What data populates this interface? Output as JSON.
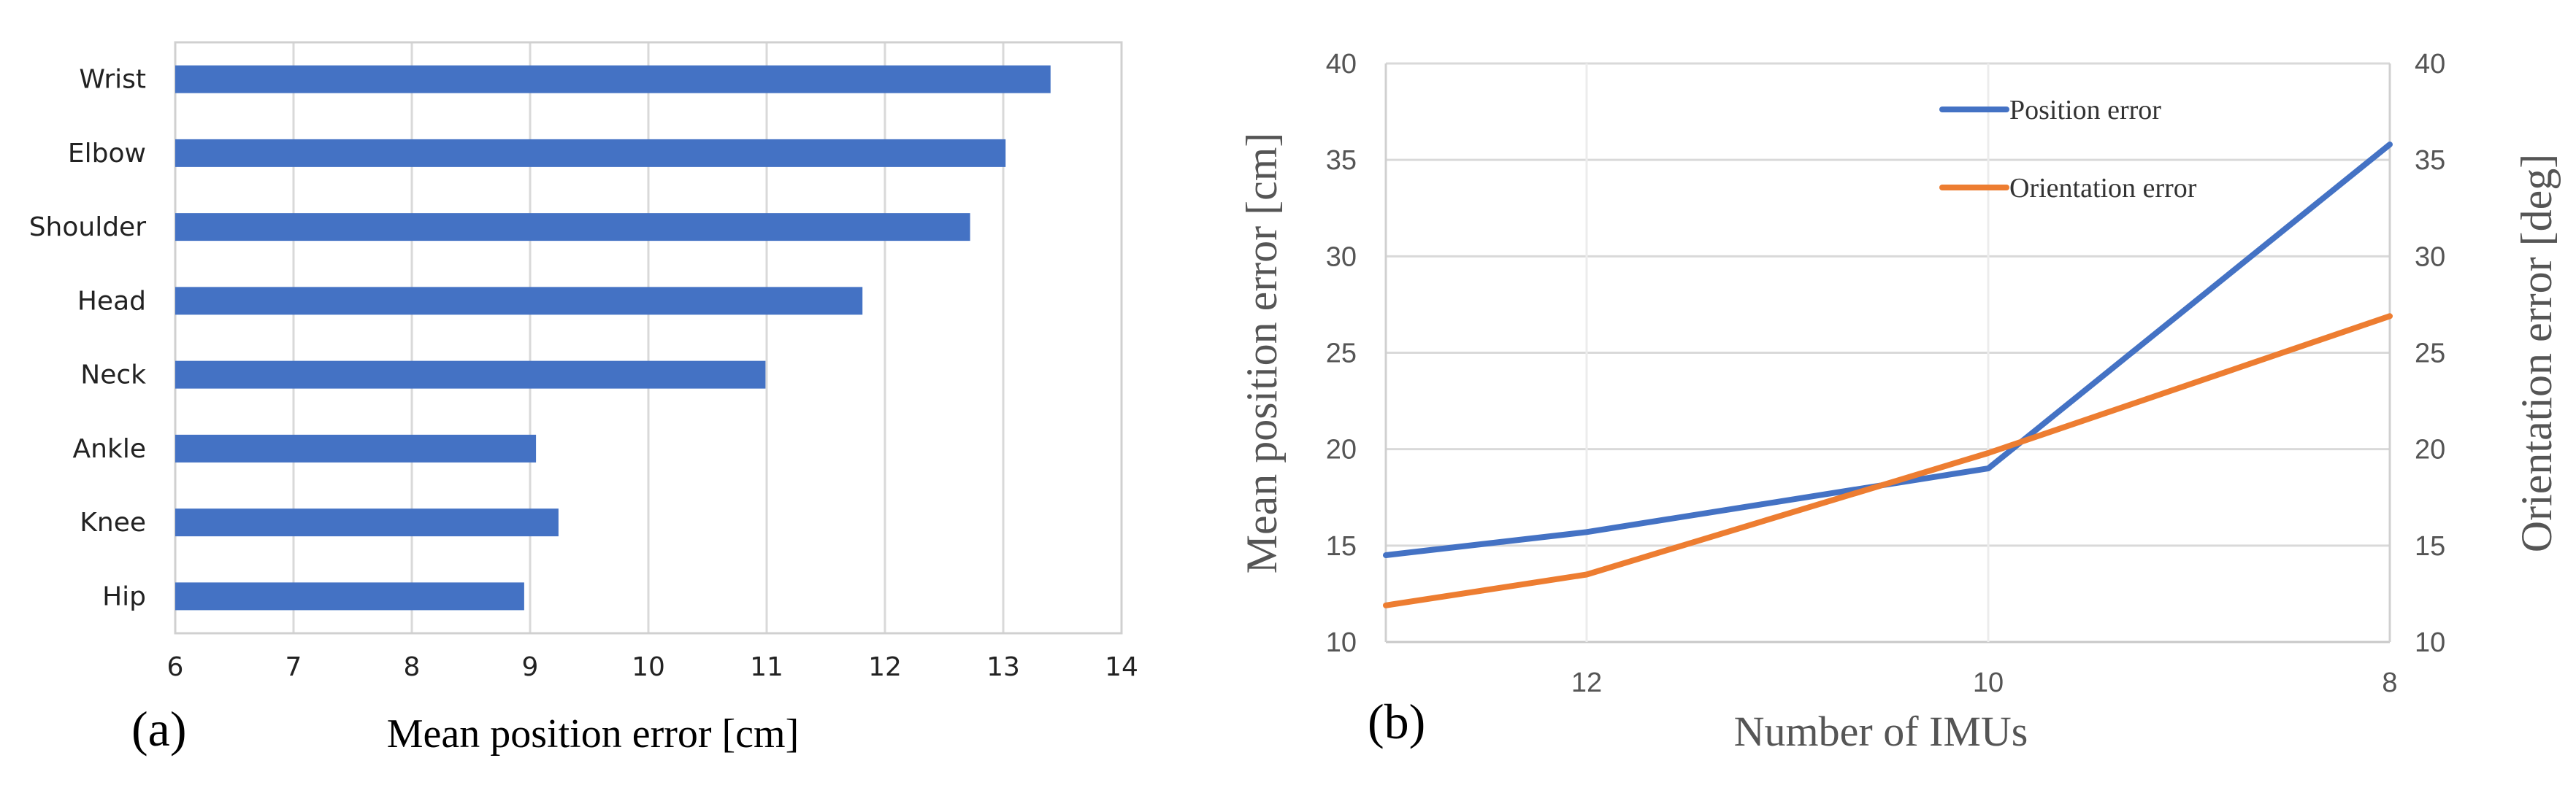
{
  "chart_data": [
    {
      "type": "bar",
      "orientation": "horizontal",
      "panel_label": "(a)",
      "categories": [
        "Wrist",
        "Elbow",
        "Shoulder",
        "Head",
        "Neck",
        "Ankle",
        "Knee",
        "Hip"
      ],
      "values": [
        13.4,
        13.02,
        12.72,
        11.81,
        10.99,
        9.05,
        9.24,
        8.95
      ],
      "xlabel": "Mean position error [cm]",
      "ylabel": "",
      "xlim": [
        6,
        14
      ],
      "xticks": [
        "6",
        "7",
        "8",
        "9",
        "10",
        "11",
        "12",
        "13",
        "14"
      ],
      "grid": true,
      "color": "#4472c4"
    },
    {
      "type": "line",
      "panel_label": "(b)",
      "x": [
        13,
        12,
        10,
        8
      ],
      "xticks": [
        "12",
        "10",
        "8"
      ],
      "xlim": [
        13,
        8
      ],
      "xlabel": "Number of IMUs",
      "ylabel_left": "Mean position error [cm]",
      "ylabel_right": "Orientation error [deg]",
      "ylim_left": [
        10,
        40
      ],
      "ylim_right": [
        10,
        40
      ],
      "yticks_left": [
        "10",
        "15",
        "20",
        "25",
        "30",
        "35",
        "40"
      ],
      "yticks_right": [
        "10",
        "15",
        "20",
        "25",
        "30",
        "35",
        "40"
      ],
      "grid": true,
      "legend_position": "top-right",
      "series": [
        {
          "name": "Position error",
          "axis": "left",
          "color": "#4472c4",
          "values": [
            14.5,
            15.7,
            19.0,
            35.8
          ]
        },
        {
          "name": "Orientation error",
          "axis": "right",
          "color": "#ed7d31",
          "values": [
            11.9,
            13.5,
            19.8,
            26.9
          ]
        }
      ]
    }
  ]
}
